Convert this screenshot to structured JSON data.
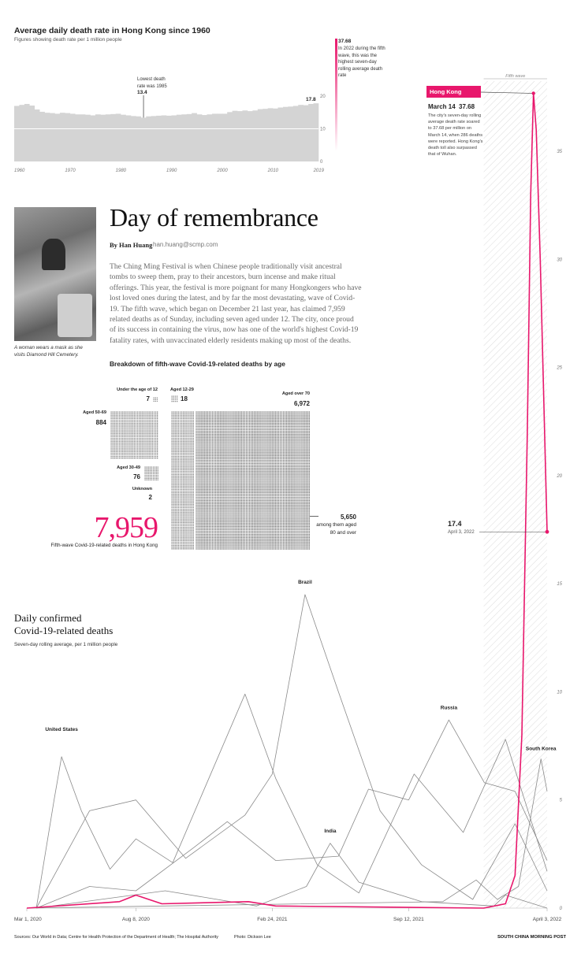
{
  "colors": {
    "accent": "#e8176c",
    "bars": "#d4d4d4",
    "lines": "#8a8a8a",
    "text": "#222222"
  },
  "top_chart": {
    "title": "Average daily death rate in Hong Kong since 1960",
    "subtitle": "Figures showing death rate per 1 million people",
    "low_label": "Lowest death rate was 1985",
    "low_value": "13.4",
    "last_value": "17.8",
    "peak_value": "37.68",
    "peak_note": "In 2022 during the fifth wave, this was the highest seven-day rolling average death rate",
    "y_ticks": [
      "20",
      "10",
      "0"
    ],
    "x_ticks": [
      "1960",
      "1970",
      "1980",
      "1990",
      "2000",
      "2010",
      "2019"
    ]
  },
  "article": {
    "photo_caption": "A woman wears a mask as she visits Diamond Hill Cemetery.",
    "headline": "Day of remembrance",
    "byline_name": "By Han Huang",
    "byline_email": "han.huang@scmp.com",
    "body": "The Ching Ming Festival is when Chinese people traditionally visit ancestral tombs to sweep them, pray to their ancestors, burn incense and make ritual offerings. This year, the festival is more poignant for many Hongkongers who have lost loved ones during the latest, and by far the most devastating, wave of Covid-19. The fifth wave, which began on December 21 last year, has claimed 7,959 related deaths as of Sunday, including seven aged under 12. The city, once proud of its success in containing the virus, now has one of the world's highest Covid-19 fatality rates, with unvaccinated elderly residents making up most of the deaths."
  },
  "age_breakdown": {
    "title": "Breakdown of fifth-wave Covid-19-related deaths by age",
    "groups": [
      {
        "label": "Under the age of 12",
        "value": "7"
      },
      {
        "label": "Aged 12-29",
        "value": "18"
      },
      {
        "label": "Aged over 70",
        "value": "6,972"
      },
      {
        "label": "Aged 50-69",
        "value": "884"
      },
      {
        "label": "Aged 30-49",
        "value": "76"
      },
      {
        "label": "Unknown",
        "value": "2"
      }
    ],
    "sub_value": "5,650",
    "sub_label": "among them aged 80 and over",
    "total": "7,959",
    "total_label": "Fifth-wave Covid-19-related deaths in Hong Kong"
  },
  "main_chart": {
    "title_line1": "Daily confirmed",
    "title_line2": "Covid-19-related deaths",
    "subtitle": "Seven-day rolling average, per 1 million people",
    "fifth_wave_label": "Fifth wave",
    "hk_label": "Hong Kong",
    "hk_date": "March 14",
    "hk_value": "37.68",
    "hk_note": "The city's seven-day rolling average death rate soared to 37.68 per million on March 14, when 286 deaths were reported. Hong Kong's death toll also surpassed that of Wuhan.",
    "end_value": "17.4",
    "end_date": "April 3, 2022",
    "y_ticks": [
      "35",
      "30",
      "25",
      "20",
      "15",
      "10",
      "5",
      "0"
    ],
    "x_ticks": [
      "Mar 1, 2020",
      "Aug 8, 2020",
      "Feb 24, 2021",
      "Sep 12, 2021",
      "April 3, 2022"
    ],
    "countries": [
      "United States",
      "Brazil",
      "Russia",
      "India",
      "South Korea"
    ]
  },
  "footer": {
    "sources": "Sources: Our World in Data; Centre for Health Protection of the Department of Health; The Hospital Authority",
    "photo_credit": "Photo: Dickson Lee",
    "brand": "SOUTH CHINA MORNING POST"
  },
  "chart_data": [
    {
      "type": "bar",
      "title": "Average daily death rate in Hong Kong since 1960",
      "subtitle": "Figures showing death rate per 1 million people",
      "categories": [
        1960,
        1961,
        1962,
        1963,
        1964,
        1965,
        1966,
        1967,
        1968,
        1969,
        1970,
        1971,
        1972,
        1973,
        1974,
        1975,
        1976,
        1977,
        1978,
        1979,
        1980,
        1981,
        1982,
        1983,
        1984,
        1985,
        1986,
        1987,
        1988,
        1989,
        1990,
        1991,
        1992,
        1993,
        1994,
        1995,
        1996,
        1997,
        1998,
        1999,
        2000,
        2001,
        2002,
        2003,
        2004,
        2005,
        2006,
        2007,
        2008,
        2009,
        2010,
        2011,
        2012,
        2013,
        2014,
        2015,
        2016,
        2017,
        2018,
        2019
      ],
      "values": [
        17.0,
        17.3,
        17.6,
        17.1,
        15.9,
        15.2,
        14.9,
        14.8,
        14.6,
        14.9,
        14.8,
        14.6,
        14.4,
        14.4,
        14.3,
        14.1,
        14.4,
        14.3,
        14.4,
        14.5,
        14.6,
        14.3,
        14.1,
        13.9,
        13.8,
        13.4,
        13.8,
        13.9,
        14.0,
        14.1,
        14.0,
        14.1,
        14.3,
        14.4,
        14.5,
        14.8,
        14.4,
        14.2,
        14.4,
        14.6,
        14.6,
        14.6,
        15.1,
        15.5,
        15.4,
        15.6,
        15.4,
        15.6,
        16.0,
        16.1,
        16.3,
        16.2,
        16.5,
        16.7,
        16.8,
        17.0,
        17.3,
        17.2,
        17.6,
        17.8
      ],
      "ylim": [
        0,
        20
      ],
      "annotations": [
        "Lowest death rate was 1985: 13.4",
        "17.8",
        "37.68 In 2022 during the fifth wave, this was the highest seven-day rolling average death rate"
      ]
    },
    {
      "type": "line",
      "title": "Daily confirmed Covid-19-related deaths",
      "subtitle": "Seven-day rolling average, per 1 million people",
      "x_range": [
        "2020-03-01",
        "2022-04-03"
      ],
      "ylim": [
        0,
        38
      ],
      "series": [
        {
          "name": "Hong Kong",
          "x": [
            "2020-03-01",
            "2020-07-15",
            "2020-08-08",
            "2020-09-15",
            "2021-01-20",
            "2021-03-01",
            "2021-12-31",
            "2022-02-01",
            "2022-02-15",
            "2022-02-25",
            "2022-03-05",
            "2022-03-10",
            "2022-03-14",
            "2022-03-18",
            "2022-03-24",
            "2022-04-03"
          ],
          "values": [
            0,
            0.3,
            0.6,
            0.2,
            0.3,
            0.1,
            0,
            0.2,
            1.5,
            8,
            22,
            33,
            37.68,
            36,
            30,
            17.4
          ]
        },
        {
          "name": "United States",
          "x": [
            "2020-03-15",
            "2020-04-10",
            "2020-04-21",
            "2020-05-20",
            "2020-07-01",
            "2020-08-08",
            "2020-10-01",
            "2021-01-15",
            "2021-03-01",
            "2021-05-01",
            "2021-07-01",
            "2021-09-20",
            "2021-12-01",
            "2022-02-01",
            "2022-04-03"
          ],
          "values": [
            0,
            5,
            7,
            4.5,
            1.8,
            3.2,
            2.1,
            9.9,
            6,
            2,
            0.7,
            6.2,
            3.5,
            7.8,
            1.7
          ]
        },
        {
          "name": "Brazil",
          "x": [
            "2020-03-15",
            "2020-06-01",
            "2020-08-08",
            "2020-10-20",
            "2021-01-15",
            "2021-02-24",
            "2021-04-13",
            "2021-06-01",
            "2021-08-01",
            "2021-10-01",
            "2021-12-15",
            "2022-02-15",
            "2022-04-03"
          ],
          "values": [
            0,
            4.5,
            5,
            2.3,
            4.3,
            6.2,
            14.5,
            10,
            4.5,
            2,
            0.4,
            3.9,
            0.8
          ]
        },
        {
          "name": "Russia",
          "x": [
            "2020-03-15",
            "2020-06-01",
            "2020-08-08",
            "2020-11-01",
            "2020-12-20",
            "2021-03-01",
            "2021-06-01",
            "2021-07-15",
            "2021-09-12",
            "2021-11-10",
            "2022-01-01",
            "2022-02-15",
            "2022-04-03"
          ],
          "values": [
            0,
            1,
            0.8,
            2.8,
            4,
            2.2,
            2.4,
            5.5,
            5,
            8.7,
            5.8,
            5.4,
            2.2
          ]
        },
        {
          "name": "India",
          "x": [
            "2020-03-15",
            "2020-09-20",
            "2021-02-01",
            "2021-04-15",
            "2021-05-20",
            "2021-07-01",
            "2021-10-01",
            "2022-01-15",
            "2022-02-01",
            "2022-04-03"
          ],
          "values": [
            0,
            0.8,
            0.1,
            1,
            3,
            1.2,
            0.3,
            0.1,
            0.6,
            0
          ]
        },
        {
          "name": "South Korea",
          "x": [
            "2020-03-01",
            "2021-11-01",
            "2021-12-20",
            "2022-01-20",
            "2022-02-20",
            "2022-03-25",
            "2022-04-03"
          ],
          "values": [
            0,
            0.3,
            1.3,
            0.4,
            1,
            6.9,
            5.4
          ]
        }
      ]
    },
    {
      "type": "table",
      "title": "Breakdown of fifth-wave Covid-19-related deaths by age",
      "categories": [
        "Under the age of 12",
        "Aged 12-29",
        "Aged 30-49",
        "Aged 50-69",
        "Aged over 70",
        "Unknown"
      ],
      "values": [
        7,
        18,
        76,
        884,
        6972,
        2
      ],
      "annotations": [
        "5,650 among them aged 80 and over",
        "7,959 Fifth-wave Covid-19-related deaths in Hong Kong"
      ]
    }
  ]
}
